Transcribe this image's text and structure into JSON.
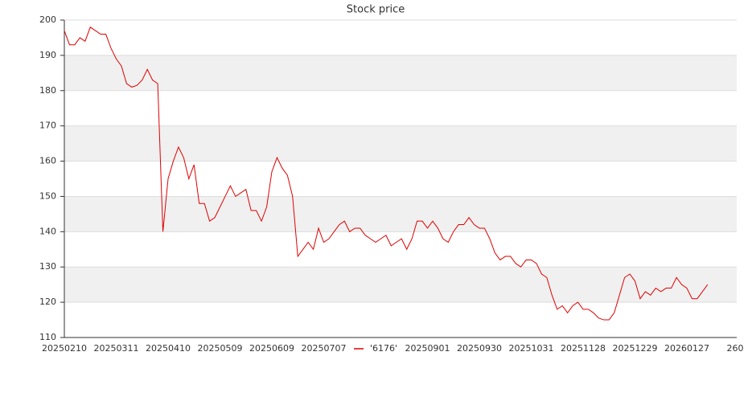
{
  "chart_data": {
    "type": "line",
    "title": "Stock price",
    "categories": [
      "20250210",
      null,
      null,
      null,
      null,
      null,
      null,
      null,
      null,
      null,
      "20250311",
      null,
      null,
      null,
      null,
      null,
      null,
      null,
      null,
      null,
      "20250410",
      null,
      null,
      null,
      null,
      null,
      null,
      null,
      null,
      null,
      "20250509",
      null,
      null,
      null,
      null,
      null,
      null,
      null,
      null,
      null,
      "20250609",
      null,
      null,
      null,
      null,
      null,
      null,
      null,
      null,
      null,
      "20250707",
      null,
      null,
      null,
      null,
      null,
      null,
      null,
      null,
      null,
      null,
      null,
      null,
      null,
      null,
      null,
      null,
      null,
      null,
      null,
      "20250901",
      null,
      null,
      null,
      null,
      null,
      null,
      null,
      null,
      null,
      "20250930",
      null,
      null,
      null,
      null,
      null,
      null,
      null,
      null,
      null,
      "20251031",
      null,
      null,
      null,
      null,
      null,
      null,
      null,
      null,
      null,
      "20251128",
      null,
      null,
      null,
      null,
      null,
      null,
      null,
      null,
      null,
      "20251229",
      null,
      null,
      null,
      null,
      null,
      null,
      null,
      null,
      null,
      "20260127",
      null,
      null,
      null,
      null,
      null,
      null,
      null,
      null,
      null,
      "260"
    ],
    "series": [
      {
        "name": "'6176'",
        "color": "#e00000",
        "values": [
          197,
          193,
          193,
          195,
          194,
          198,
          197,
          196,
          196,
          192,
          189,
          187,
          182,
          181,
          181.5,
          183,
          186,
          183,
          182,
          140,
          155,
          160,
          164,
          161,
          155,
          159,
          148,
          148,
          143,
          144,
          147,
          150,
          153,
          150,
          151,
          152,
          146,
          146,
          143,
          147,
          157,
          161,
          158,
          156,
          150,
          133,
          135,
          137,
          135,
          141,
          137,
          138,
          140,
          142,
          143,
          140,
          141,
          141,
          139,
          138,
          137,
          138,
          139,
          136,
          137,
          138,
          135,
          138,
          143,
          143,
          141,
          143,
          141,
          138,
          137,
          140,
          142,
          142,
          144,
          142,
          141,
          141,
          138,
          134,
          132,
          133,
          133,
          131,
          130,
          132,
          132,
          131,
          128,
          127,
          122,
          118,
          119,
          117,
          119,
          120,
          118,
          118,
          117,
          115.5,
          115,
          115,
          117,
          122,
          127,
          128,
          126,
          121,
          123,
          122,
          124,
          123,
          124,
          124,
          127,
          125,
          124,
          121,
          121,
          123,
          125,
          null,
          null,
          null,
          null,
          null,
          null
        ]
      }
    ],
    "ylim": [
      110,
      200
    ],
    "yticks": [
      110,
      120,
      130,
      140,
      150,
      160,
      170,
      180,
      190,
      200
    ],
    "grid": true,
    "legend": "bottom"
  }
}
